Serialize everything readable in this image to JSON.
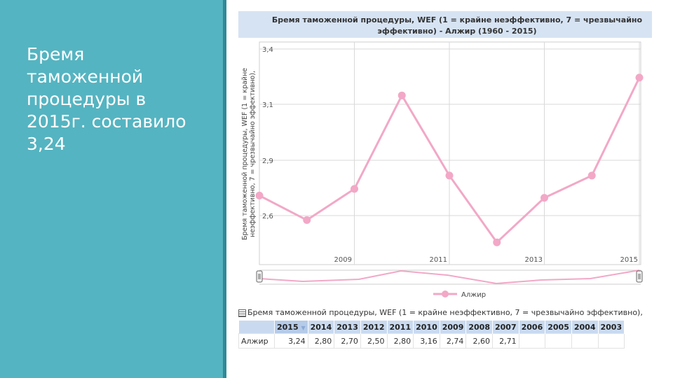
{
  "slide": {
    "text": "Бремя\nтаможенной\nпроцедуры в\n2015г. составило\n3,24"
  },
  "chart_data": {
    "type": "line",
    "title_line1": "Бремя таможенной процедуры, WEF (1 = крайне неэффективно, 7 = чрезвычайно",
    "title_line2": "эффективно) - Алжир (1960 - 2015)",
    "ylabel_line1": "Бремя таможенной процедуры, WEF (1 = крайне",
    "ylabel_line2": "неэффективно, 7 = чрезвычайно эффективно),",
    "x": [
      2007,
      2008,
      2009,
      2010,
      2011,
      2012,
      2013,
      2014,
      2015
    ],
    "x_tick_labels": [
      "2009",
      "2011",
      "2013",
      "2015"
    ],
    "y_tick_labels": [
      "3,4",
      "3,1",
      "2,9",
      "2,6"
    ],
    "ylim": [
      2.4,
      3.4
    ],
    "grid": true,
    "series": [
      {
        "name": "Алжир",
        "color": "#f2a8c6",
        "values": [
          2.71,
          2.6,
          2.74,
          3.16,
          2.8,
          2.5,
          2.7,
          2.8,
          3.24
        ]
      }
    ],
    "legend_position": "bottom"
  },
  "table": {
    "caption": "Бремя таможенной процедуры, WEF (1 = крайне неэффективно, 7 = чрезвычайно эффективно),",
    "columns": [
      "2015",
      "2014",
      "2013",
      "2012",
      "2011",
      "2010",
      "2009",
      "2008",
      "2007",
      "2006",
      "2005",
      "2004",
      "2003"
    ],
    "rows": [
      {
        "label": "Алжир",
        "values": [
          "3,24",
          "2,80",
          "2,70",
          "2,50",
          "2,80",
          "3,16",
          "2,74",
          "2,60",
          "2,71",
          "",
          "",
          "",
          ""
        ]
      }
    ],
    "sort_icon": "sort-down-icon",
    "table_icon": "table-icon"
  }
}
